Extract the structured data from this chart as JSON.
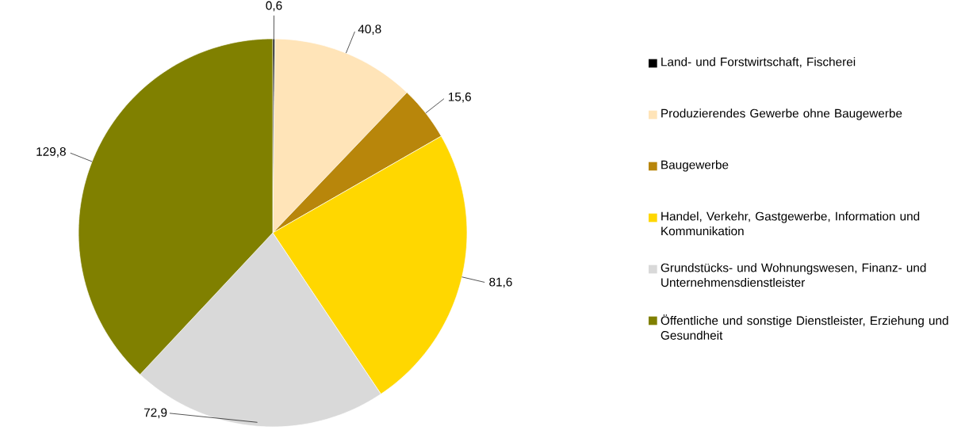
{
  "chart_data": {
    "type": "pie",
    "categories": [
      "Land- und Forstwirtschaft, Fischerei",
      "Produzierendes Gewerbe ohne Baugewerbe",
      "Baugewerbe",
      "Handel, Verkehr, Gastgewerbe, Information und Kommunikation",
      "Grundstücks- und Wohnungswesen, Finanz- und Unternehmensdienstleister",
      "Öffentliche und sonstige Dienstleister, Erziehung und Gesundheit"
    ],
    "values": [
      0.6,
      40.8,
      15.6,
      81.6,
      72.9,
      129.8
    ],
    "value_labels": [
      "0,6",
      "40,8",
      "15,6",
      "81,6",
      "72,9",
      "129,8"
    ],
    "colors": [
      "#000000",
      "#ffe4b8",
      "#b8860b",
      "#ffd700",
      "#d9d9d9",
      "#808000"
    ],
    "legend": "right"
  }
}
